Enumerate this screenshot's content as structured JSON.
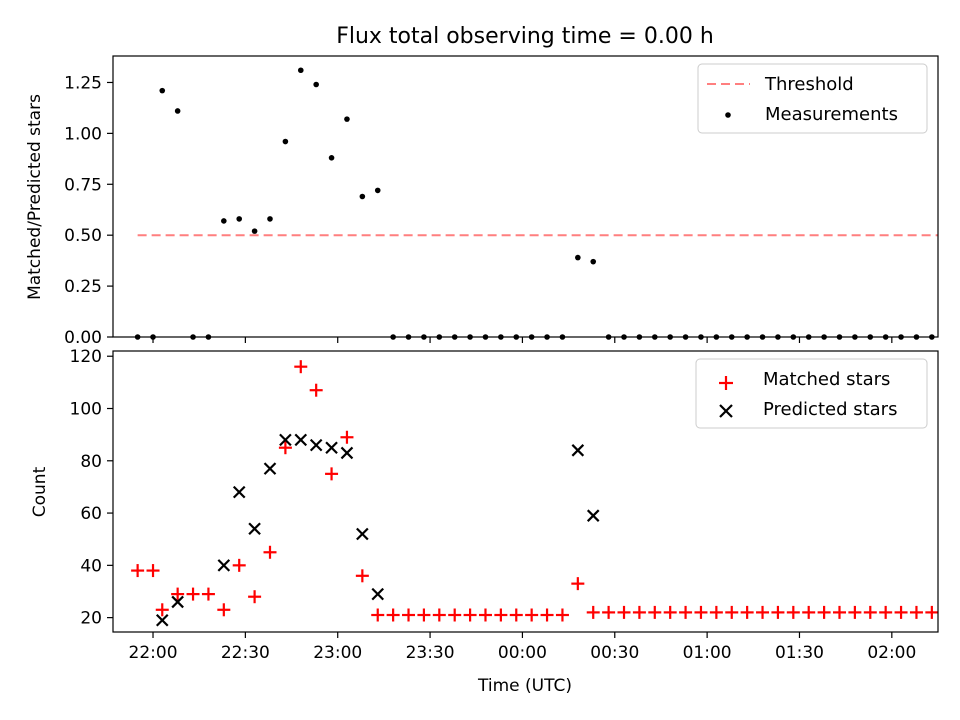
{
  "chart_data": [
    {
      "type": "scatter",
      "title": "Flux total observing time = 0.00 h",
      "xlabel": "",
      "ylabel": "Matched/Predicted stars",
      "ylim": [
        0,
        1.38
      ],
      "yticks": [
        "0.00",
        "0.25",
        "0.50",
        "0.75",
        "1.00",
        "1.25"
      ],
      "legend_position": "upper right",
      "threshold": {
        "name": "Threshold",
        "value": 0.5,
        "x_start": "21:55",
        "x_end": "02:15",
        "color": "#ff7f7f"
      },
      "series": [
        {
          "name": "Measurements",
          "color": "#000000",
          "marker": "dot",
          "points": [
            [
              "21:55",
              0
            ],
            [
              "22:00",
              0
            ],
            [
              "22:03",
              1.21
            ],
            [
              "22:08",
              1.11
            ],
            [
              "22:13",
              0
            ],
            [
              "22:18",
              0
            ],
            [
              "22:23",
              0.57
            ],
            [
              "22:28",
              0.58
            ],
            [
              "22:33",
              0.52
            ],
            [
              "22:38",
              0.58
            ],
            [
              "22:43",
              0.96
            ],
            [
              "22:48",
              1.31
            ],
            [
              "22:53",
              1.24
            ],
            [
              "22:58",
              0.88
            ],
            [
              "23:03",
              1.07
            ],
            [
              "23:08",
              0.69
            ],
            [
              "23:13",
              0.72
            ],
            [
              "23:18",
              0
            ],
            [
              "23:23",
              0
            ],
            [
              "23:28",
              0
            ],
            [
              "23:33",
              0
            ],
            [
              "23:38",
              0
            ],
            [
              "23:43",
              0
            ],
            [
              "23:48",
              0
            ],
            [
              "23:53",
              0
            ],
            [
              "23:58",
              0
            ],
            [
              "00:03",
              0
            ],
            [
              "00:08",
              0
            ],
            [
              "00:13",
              0
            ],
            [
              "00:18",
              0.39
            ],
            [
              "00:23",
              0.37
            ],
            [
              "00:28",
              0
            ],
            [
              "00:33",
              0
            ],
            [
              "00:38",
              0
            ],
            [
              "00:43",
              0
            ],
            [
              "00:48",
              0
            ],
            [
              "00:53",
              0
            ],
            [
              "00:58",
              0
            ],
            [
              "01:03",
              0
            ],
            [
              "01:08",
              0
            ],
            [
              "01:13",
              0
            ],
            [
              "01:18",
              0
            ],
            [
              "01:23",
              0
            ],
            [
              "01:28",
              0
            ],
            [
              "01:33",
              0
            ],
            [
              "01:38",
              0
            ],
            [
              "01:43",
              0
            ],
            [
              "01:48",
              0
            ],
            [
              "01:53",
              0
            ],
            [
              "01:58",
              0
            ],
            [
              "02:03",
              0
            ],
            [
              "02:08",
              0
            ],
            [
              "02:13",
              0
            ]
          ]
        }
      ]
    },
    {
      "type": "scatter",
      "title": "",
      "xlabel": "Time (UTC)",
      "ylabel": "Count",
      "ylim": [
        14.5,
        122
      ],
      "yticks": [
        "20",
        "40",
        "60",
        "80",
        "100",
        "120"
      ],
      "xticks": [
        "22:00",
        "22:30",
        "23:00",
        "23:30",
        "00:00",
        "00:30",
        "01:00",
        "01:30",
        "02:00"
      ],
      "legend_position": "upper right",
      "series": [
        {
          "name": "Matched stars",
          "color": "#ff0000",
          "marker": "plus",
          "points": [
            [
              "21:55",
              38
            ],
            [
              "22:00",
              38
            ],
            [
              "22:03",
              23
            ],
            [
              "22:08",
              29
            ],
            [
              "22:13",
              29
            ],
            [
              "22:18",
              29
            ],
            [
              "22:23",
              23
            ],
            [
              "22:28",
              40
            ],
            [
              "22:33",
              28
            ],
            [
              "22:38",
              45
            ],
            [
              "22:43",
              85
            ],
            [
              "22:48",
              116
            ],
            [
              "22:53",
              107
            ],
            [
              "22:58",
              75
            ],
            [
              "23:03",
              89
            ],
            [
              "23:08",
              36
            ],
            [
              "23:13",
              21
            ],
            [
              "23:18",
              21
            ],
            [
              "23:23",
              21
            ],
            [
              "23:28",
              21
            ],
            [
              "23:33",
              21
            ],
            [
              "23:38",
              21
            ],
            [
              "23:43",
              21
            ],
            [
              "23:48",
              21
            ],
            [
              "23:53",
              21
            ],
            [
              "23:58",
              21
            ],
            [
              "00:03",
              21
            ],
            [
              "00:08",
              21
            ],
            [
              "00:13",
              21
            ],
            [
              "00:18",
              33
            ],
            [
              "00:23",
              22
            ],
            [
              "00:28",
              22
            ],
            [
              "00:33",
              22
            ],
            [
              "00:38",
              22
            ],
            [
              "00:43",
              22
            ],
            [
              "00:48",
              22
            ],
            [
              "00:53",
              22
            ],
            [
              "00:58",
              22
            ],
            [
              "01:03",
              22
            ],
            [
              "01:08",
              22
            ],
            [
              "01:13",
              22
            ],
            [
              "01:18",
              22
            ],
            [
              "01:23",
              22
            ],
            [
              "01:28",
              22
            ],
            [
              "01:33",
              22
            ],
            [
              "01:38",
              22
            ],
            [
              "01:43",
              22
            ],
            [
              "01:48",
              22
            ],
            [
              "01:53",
              22
            ],
            [
              "01:58",
              22
            ],
            [
              "02:03",
              22
            ],
            [
              "02:08",
              22
            ],
            [
              "02:13",
              22
            ]
          ]
        },
        {
          "name": "Predicted stars",
          "color": "#000000",
          "marker": "x",
          "points": [
            [
              "22:03",
              19
            ],
            [
              "22:08",
              26
            ],
            [
              "22:23",
              40
            ],
            [
              "22:28",
              68
            ],
            [
              "22:33",
              54
            ],
            [
              "22:38",
              77
            ],
            [
              "22:43",
              88
            ],
            [
              "22:48",
              88
            ],
            [
              "22:53",
              86
            ],
            [
              "22:58",
              85
            ],
            [
              "23:03",
              83
            ],
            [
              "23:08",
              52
            ],
            [
              "23:13",
              29
            ],
            [
              "00:18",
              84
            ],
            [
              "00:23",
              59
            ]
          ]
        }
      ]
    }
  ]
}
